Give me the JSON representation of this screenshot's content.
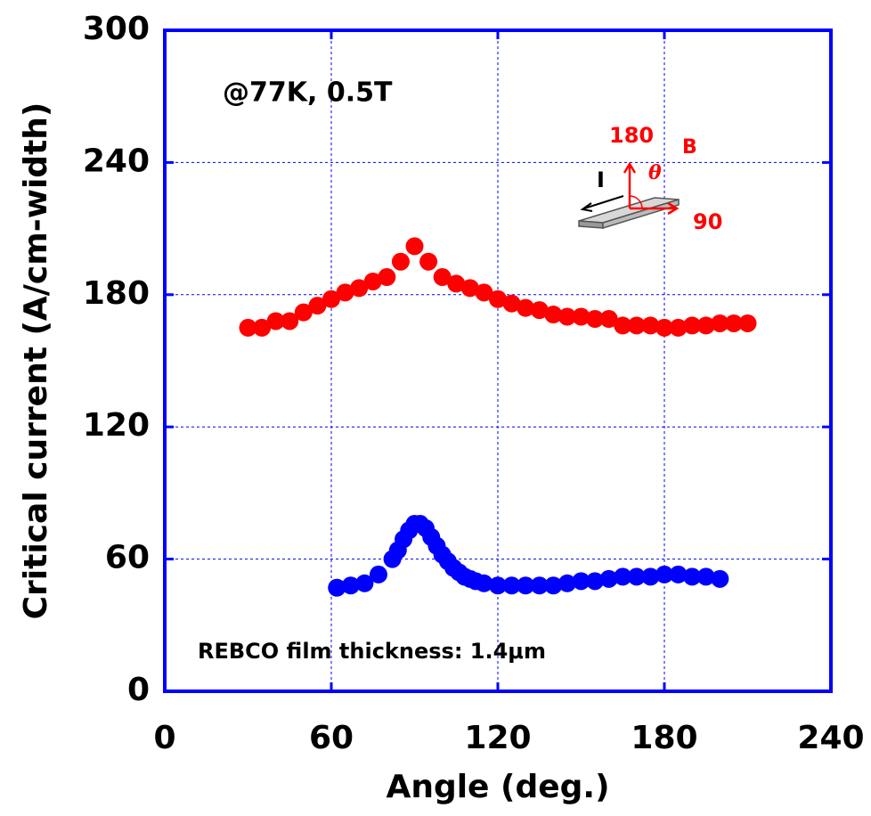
{
  "chart_data": {
    "type": "scatter",
    "x_label": "Angle (deg.)",
    "y_label": "Critical current (A/cm-width)",
    "xlim": [
      0,
      240
    ],
    "xticks": [
      0,
      60,
      120,
      180,
      240
    ],
    "ylim": [
      0,
      300
    ],
    "yticks": [
      0,
      60,
      120,
      180,
      240,
      300
    ],
    "grid": true,
    "annotations": [
      "@77K, 0.5T",
      "REBCO film thickness: 1.4μm",
      "180",
      "B",
      "I",
      "θ",
      "90"
    ],
    "series": [
      {
        "color": "#ff0000",
        "x": [
          30,
          35,
          40,
          45,
          50,
          55,
          60,
          65,
          70,
          75,
          80,
          85,
          90,
          95,
          100,
          105,
          110,
          115,
          120,
          125,
          130,
          135,
          140,
          145,
          150,
          155,
          160,
          165,
          170,
          175,
          180,
          185,
          190,
          195,
          200,
          205,
          210
        ],
        "values": [
          165,
          165,
          168,
          168,
          172,
          175,
          178,
          181,
          183,
          186,
          188,
          195,
          202,
          195,
          188,
          185,
          183,
          181,
          178,
          176,
          174,
          173,
          171,
          170,
          170,
          169,
          169,
          166,
          166,
          166,
          165,
          165,
          166,
          166,
          167,
          167,
          167
        ]
      },
      {
        "color": "#0000ff",
        "x": [
          62,
          67,
          72,
          77,
          82,
          84,
          86,
          88,
          90,
          92,
          94,
          96,
          98,
          100,
          102,
          104,
          106,
          108,
          110,
          112,
          115,
          120,
          125,
          130,
          135,
          140,
          145,
          150,
          155,
          160,
          165,
          170,
          175,
          180,
          185,
          190,
          195,
          200
        ],
        "values": [
          47,
          48,
          49,
          53,
          60,
          64,
          69,
          73,
          76,
          76,
          74,
          70,
          66,
          62,
          59,
          56,
          54,
          52,
          51,
          50,
          49,
          48,
          48,
          48,
          48,
          48,
          49,
          50,
          50,
          51,
          52,
          52,
          52,
          53,
          53,
          52,
          52,
          51
        ]
      }
    ]
  }
}
